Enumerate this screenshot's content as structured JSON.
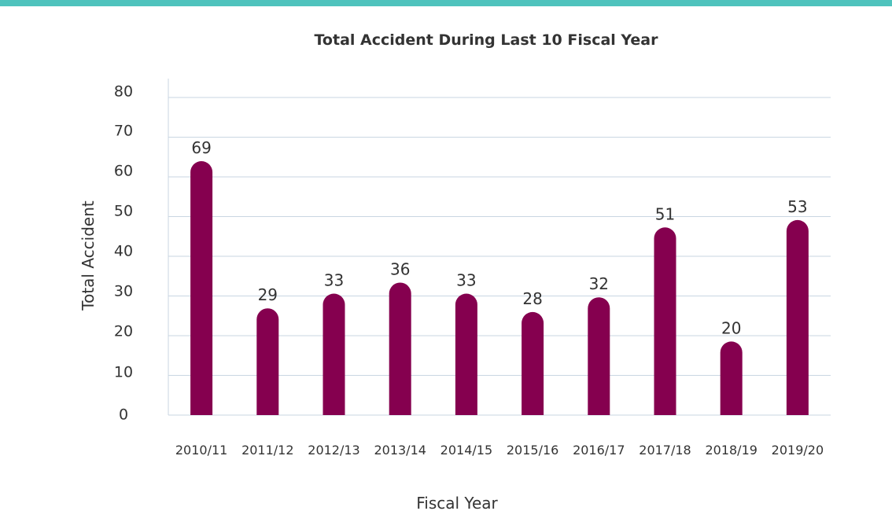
{
  "colors": {
    "top_bar": "#4FC3BD",
    "bar": "#85004F",
    "grid": "#C9D6E2",
    "axis": "#C9D6E2",
    "text": "#333333"
  },
  "chart_data": {
    "type": "bar",
    "title": "Total Accident During Last 10 Fiscal Year",
    "xlabel": "Fiscal Year",
    "ylabel": "Total Accident",
    "categories": [
      "2010/11",
      "2011/12",
      "2012/13",
      "2013/14",
      "2014/15",
      "2015/16",
      "2016/17",
      "2017/18",
      "2018/19",
      "2019/20"
    ],
    "values": [
      69,
      29,
      33,
      36,
      33,
      28,
      32,
      51,
      20,
      53
    ],
    "yticks": [
      0,
      10,
      20,
      30,
      40,
      50,
      60,
      70,
      80
    ],
    "ylim": [
      0,
      80
    ],
    "grid": true,
    "legend": "none"
  }
}
